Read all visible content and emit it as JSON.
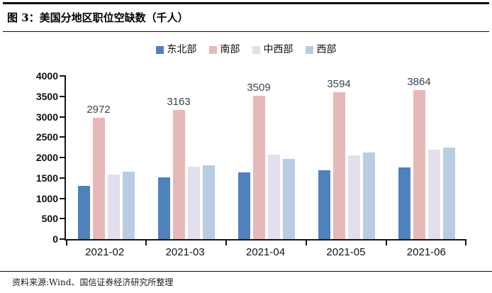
{
  "header": {
    "title": "图 3：美国分地区职位空缺数（千人）"
  },
  "footer": {
    "source": "资料来源:Wind、国信证券经济研究所整理"
  },
  "chart_data": {
    "type": "bar",
    "title": "图 3：美国分地区职位空缺数（千人）",
    "categories": [
      "2021-02",
      "2021-03",
      "2021-04",
      "2021-05",
      "2021-06"
    ],
    "series": [
      {
        "name": "东北部",
        "color": "#4F81BD",
        "values": [
          1300,
          1520,
          1640,
          1690,
          1750
        ],
        "data_labels": false
      },
      {
        "name": "南部",
        "color": "#E6B9B8",
        "values": [
          2972,
          3163,
          3509,
          3594,
          3864
        ],
        "data_labels": true
      },
      {
        "name": "中西部",
        "color": "#E4DFEC",
        "values": [
          1590,
          1780,
          2070,
          2060,
          2200
        ],
        "data_labels": false
      },
      {
        "name": "西部",
        "color": "#B8CCE4",
        "values": [
          1660,
          1810,
          1960,
          2130,
          2240
        ],
        "data_labels": false
      }
    ],
    "xlabel": "",
    "ylabel": "",
    "ylim": [
      0,
      4000
    ],
    "yticks": [
      0,
      500,
      1000,
      1500,
      2000,
      2500,
      3000,
      3500,
      4000
    ],
    "grid": false,
    "legend_position": "top",
    "axis_color": "#151515",
    "label_color": "#3d4254"
  }
}
